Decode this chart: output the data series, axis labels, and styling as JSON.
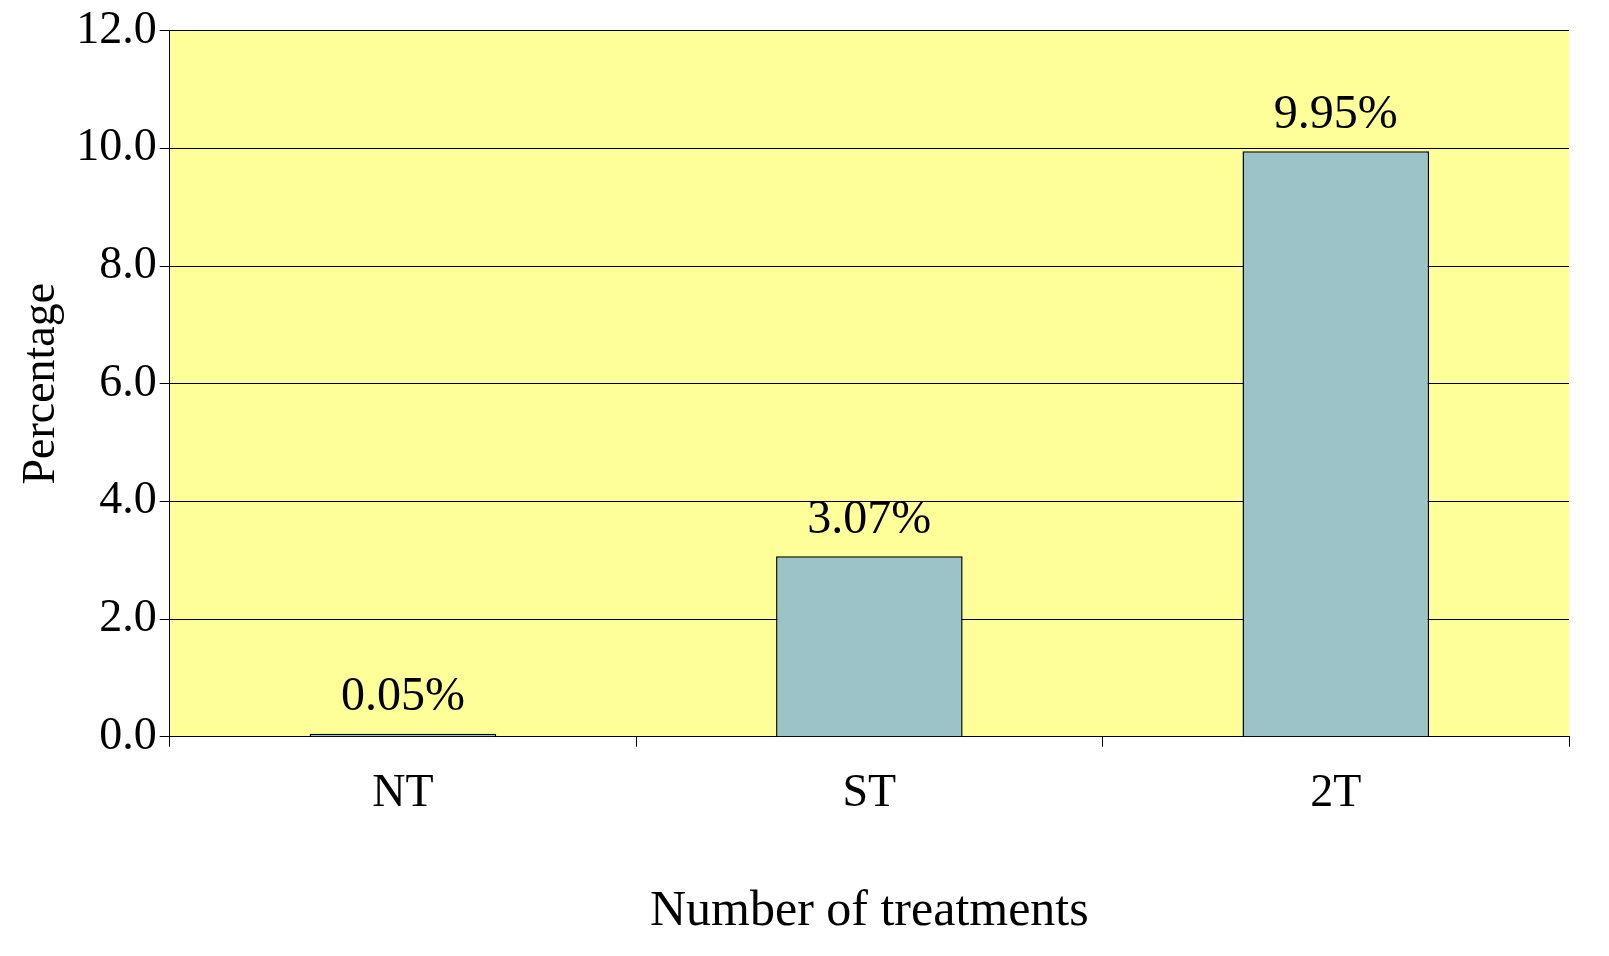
{
  "chart_data": {
    "type": "bar",
    "xlabel": "Number of treatments",
    "ylabel": "Percentage",
    "categories": [
      "NT",
      "ST",
      "2T"
    ],
    "values": [
      0.05,
      3.07,
      9.95
    ],
    "color": "#9cc3c7",
    "value_labels": [
      "0.05%",
      "3.07%",
      "9.95%"
    ],
    "ylim": [
      0,
      12
    ],
    "yticks": [
      {
        "value": 0,
        "label": "0.0"
      },
      {
        "value": 2,
        "label": "2.0"
      },
      {
        "value": 4,
        "label": "4.0"
      },
      {
        "value": 6,
        "label": "6.0"
      },
      {
        "value": 8,
        "label": "8.0"
      },
      {
        "value": 10,
        "label": "10.0"
      },
      {
        "value": 12,
        "label": "12.0"
      }
    ],
    "grid": "y"
  }
}
